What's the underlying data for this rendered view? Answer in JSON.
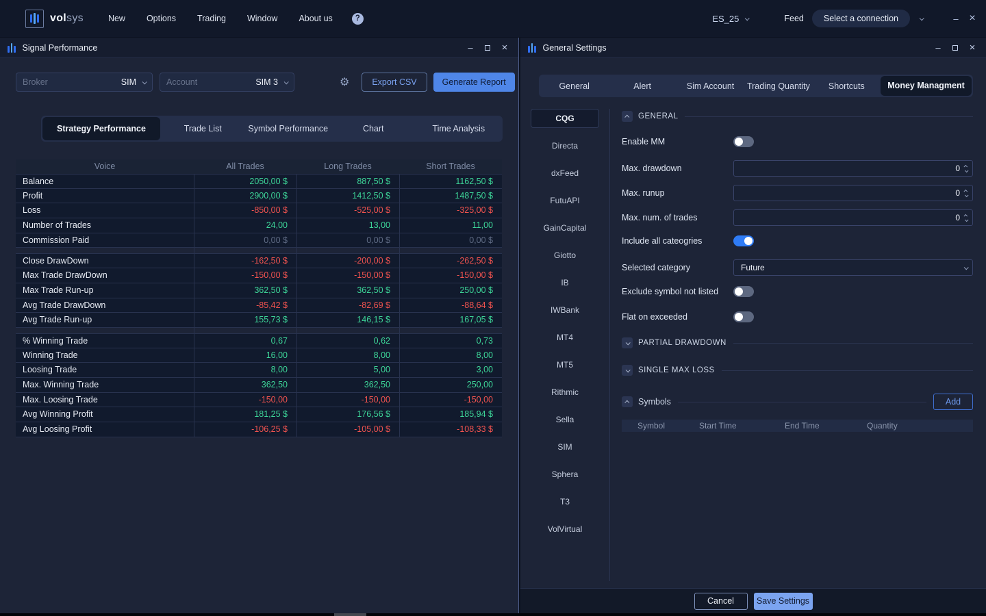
{
  "app_bar": {
    "logo_bold": "vol",
    "logo_light": "sys",
    "menu": [
      "New",
      "Options",
      "Trading",
      "Window",
      "About us"
    ],
    "help_glyph": "?",
    "instrument": "ES_25",
    "feed_label": "Feed",
    "connection_placeholder": "Select a connection",
    "minimize_glyph": "–",
    "close_glyph": "×"
  },
  "left_window": {
    "title": "Signal Performance",
    "toolbar": {
      "broker_label": "Broker",
      "broker_value": "SIM",
      "account_label": "Account",
      "account_value": "SIM 3",
      "export_csv_label": "Export CSV",
      "generate_report_label": "Generate Report",
      "gear_glyph": "⚙"
    },
    "tabs": [
      "Strategy Performance",
      "Trade List",
      "Symbol Performance",
      "Chart",
      "Time Analysis"
    ],
    "active_tab": "Strategy Performance",
    "table": {
      "columns": [
        "Voice",
        "All Trades",
        "Long Trades",
        "Short Trades"
      ],
      "groups": [
        {
          "rows": [
            {
              "label": "Balance",
              "values": [
                "2050,00 $",
                "887,50 $",
                "1162,50 $"
              ],
              "color": "green"
            },
            {
              "label": "Profit",
              "values": [
                "2900,00 $",
                "1412,50 $",
                "1487,50 $"
              ],
              "color": "green"
            },
            {
              "label": "Loss",
              "values": [
                "-850,00 $",
                "-525,00 $",
                "-325,00 $"
              ],
              "color": "red"
            },
            {
              "label": "Number of Trades",
              "values": [
                "24,00",
                "13,00",
                "11,00"
              ],
              "color": "green"
            },
            {
              "label": "Commission Paid",
              "values": [
                "0,00 $",
                "0,00 $",
                "0,00 $"
              ],
              "color": "mutedv"
            }
          ]
        },
        {
          "rows": [
            {
              "label": "Close DrawDown",
              "values": [
                "-162,50 $",
                "-200,00 $",
                "-262,50 $"
              ],
              "color": "red"
            },
            {
              "label": "Max Trade DrawDown",
              "values": [
                "-150,00 $",
                "-150,00 $",
                "-150,00 $"
              ],
              "color": "red"
            },
            {
              "label": "Max Trade Run-up",
              "values": [
                "362,50 $",
                "362,50 $",
                "250,00 $"
              ],
              "color": "green"
            },
            {
              "label": "Avg Trade DrawDown",
              "values": [
                "-85,42 $",
                "-82,69 $",
                "-88,64 $"
              ],
              "color": "red"
            },
            {
              "label": "Avg Trade Run-up",
              "values": [
                "155,73 $",
                "146,15 $",
                "167,05 $"
              ],
              "color": "green"
            }
          ]
        },
        {
          "rows": [
            {
              "label": "% Winning Trade",
              "values": [
                "0,67",
                "0,62",
                "0,73"
              ],
              "color": "green"
            },
            {
              "label": "Winning Trade",
              "values": [
                "16,00",
                "8,00",
                "8,00"
              ],
              "color": "green"
            },
            {
              "label": "Loosing Trade",
              "values": [
                "8,00",
                "5,00",
                "3,00"
              ],
              "color": "green"
            },
            {
              "label": "Max. Winning Trade",
              "values": [
                "362,50",
                "362,50",
                "250,00"
              ],
              "color": "green"
            },
            {
              "label": "Max. Loosing Trade",
              "values": [
                "-150,00",
                "-150,00",
                "-150,00"
              ],
              "color": "red"
            },
            {
              "label": "Avg Winning Profit",
              "values": [
                "181,25 $",
                "176,56 $",
                "185,94 $"
              ],
              "color": "green"
            },
            {
              "label": "Avg Loosing Profit",
              "values": [
                "-106,25 $",
                "-105,00 $",
                "-108,33 $"
              ],
              "color": "red"
            }
          ]
        }
      ]
    }
  },
  "right_window": {
    "title": "General Settings",
    "tabs": [
      "General",
      "Alert",
      "Sim Account",
      "Trading Quantity",
      "Shortcuts",
      "Money Managment"
    ],
    "active_tab": "Money Managment",
    "brokers": [
      "CQG",
      "Directa",
      "dxFeed",
      "FutuAPI",
      "GainCapital",
      "Giotto",
      "IB",
      "IWBank",
      "MT4",
      "MT5",
      "Rithmic",
      "Sella",
      "SIM",
      "Sphera",
      "T3",
      "VolVirtual"
    ],
    "selected_broker": "CQG",
    "settings": {
      "general_title": "GENERAL",
      "general_rows": [
        {
          "name": "enable-mm",
          "label": "Enable MM",
          "control": "toggle",
          "on": false
        },
        {
          "name": "max-drawdown",
          "label": "Max. drawdown",
          "control": "number",
          "value": "0"
        },
        {
          "name": "max-runup",
          "label": "Max. runup",
          "control": "number",
          "value": "0"
        },
        {
          "name": "max-num-trades",
          "label": "Max. num. of trades",
          "control": "number",
          "value": "0"
        },
        {
          "name": "include-all-categories",
          "label": "Include all cateogries",
          "control": "toggle",
          "on": true
        },
        {
          "name": "selected-category",
          "label": "Selected category",
          "control": "select",
          "value": "Future"
        },
        {
          "name": "exclude-symbol-not-listed",
          "label": "Exclude symbol not listed",
          "control": "toggle",
          "on": false
        },
        {
          "name": "flat-on-exceeded",
          "label": "Flat on exceeded",
          "control": "toggle",
          "on": false
        }
      ],
      "partial_drawdown_title": "PARTIAL DRAWDOWN",
      "single_max_loss_title": "SINGLE MAX LOSS",
      "symbols_title": "Symbols",
      "add_label": "Add",
      "symbols_columns": [
        "Symbol",
        "Start Time",
        "End Time",
        "Quantity"
      ]
    },
    "footer": {
      "cancel_label": "Cancel",
      "save_label": "Save Settings"
    }
  },
  "colors": {
    "accent_blue": "#2f7cf6",
    "positive_green": "#3dd598",
    "negative_red": "#f1534f",
    "muted_value": "#5f6b84",
    "window_bg": "#1d2437",
    "titlebar_bg": "#161d2f"
  }
}
